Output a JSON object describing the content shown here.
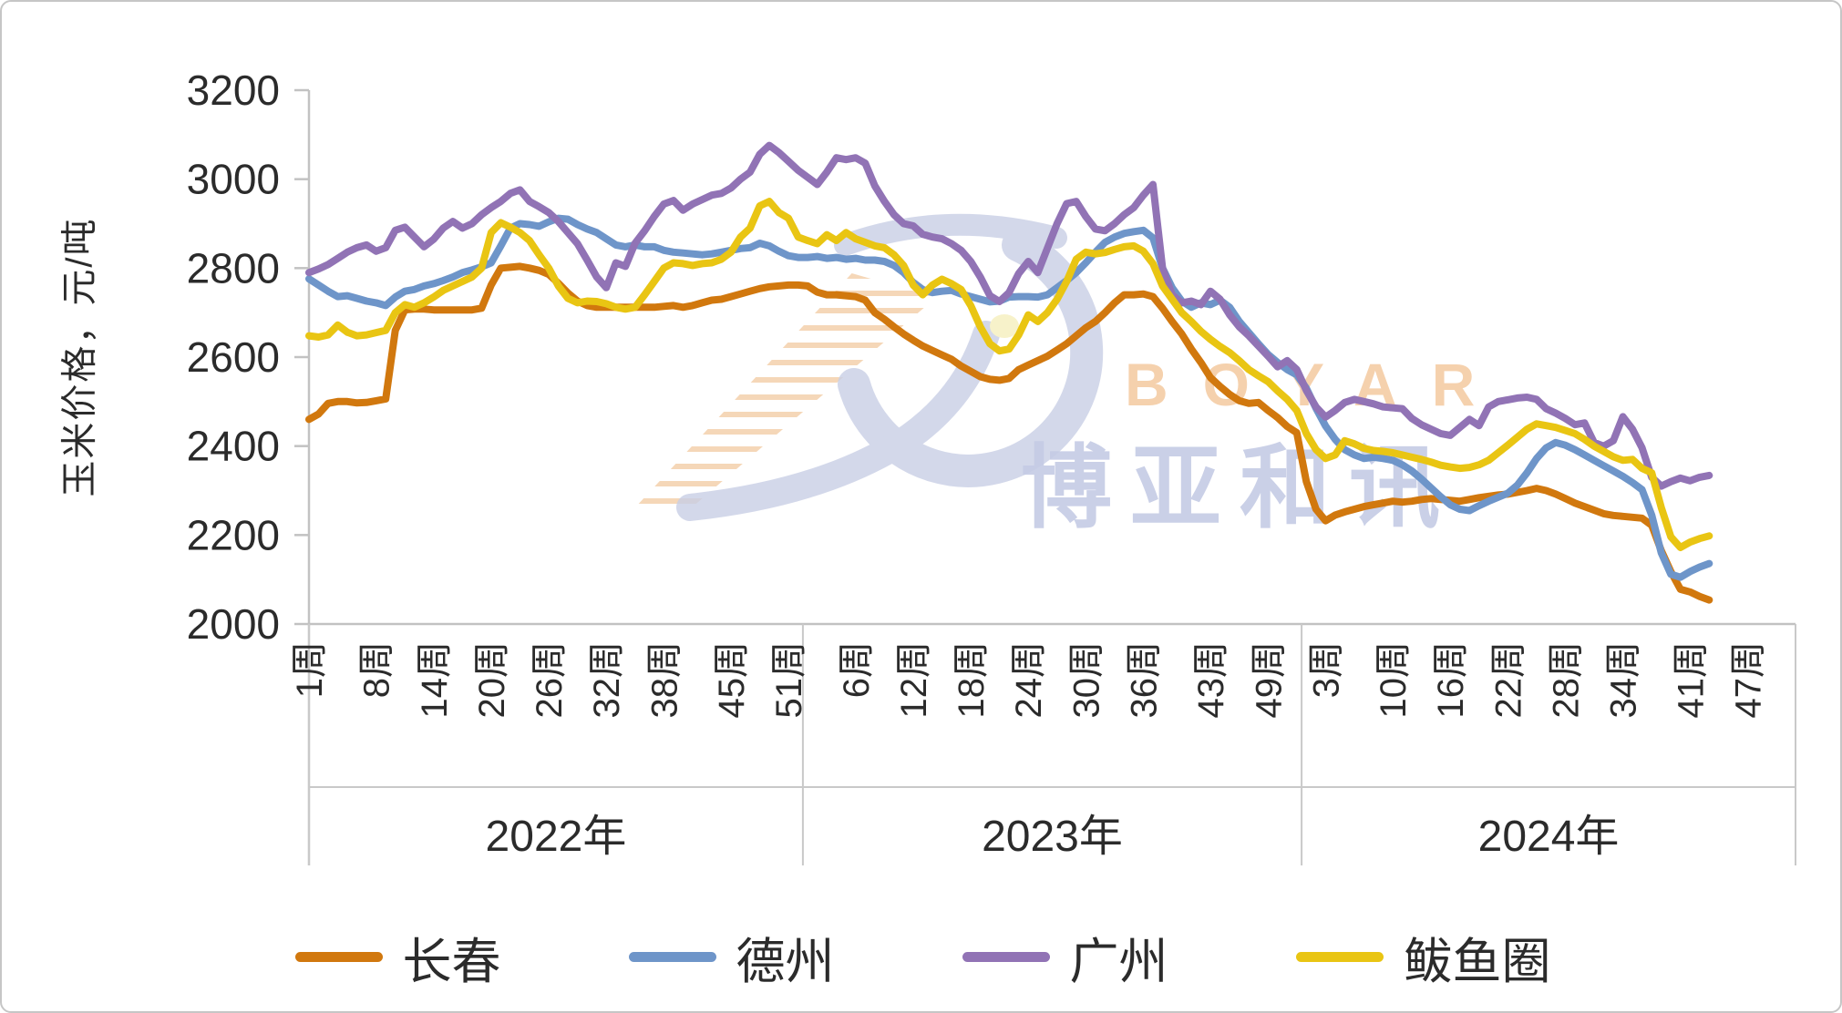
{
  "y_axis_title": "玉米价格，元/吨",
  "watermark": {
    "en": "BOYAR",
    "cn": "博亚和讯"
  },
  "chart_data": {
    "type": "line",
    "title": "",
    "ylabel": "玉米价格，元/吨",
    "xlabel": "",
    "ylim": [
      2000,
      3200
    ],
    "yticks": [
      2000,
      2200,
      2400,
      2600,
      2800,
      3000,
      3200
    ],
    "grid": false,
    "legend_position": "bottom",
    "x_axis_unit": "周 (week)",
    "style": {
      "axis_line_color": "#c2c2c2",
      "separator_color": "#c9c9c9",
      "text_color": "#2b2b2b"
    },
    "x_groups": [
      {
        "label": "2022年",
        "weeks": 52,
        "tick_weeks": [
          1,
          8,
          14,
          20,
          26,
          32,
          38,
          45,
          51
        ],
        "tick_labels": [
          "1周",
          "8周",
          "14周",
          "20周",
          "26周",
          "32周",
          "38周",
          "45周",
          "51周"
        ]
      },
      {
        "label": "2023年",
        "weeks": 52,
        "tick_weeks": [
          6,
          12,
          18,
          24,
          30,
          36,
          43,
          49
        ],
        "tick_labels": [
          "6周",
          "12周",
          "18周",
          "24周",
          "30周",
          "36周",
          "43周",
          "49周"
        ]
      },
      {
        "label": "2024年",
        "weeks": 52,
        "tick_weeks": [
          3,
          10,
          16,
          22,
          28,
          34,
          41,
          47
        ],
        "tick_labels": [
          "3周",
          "10周",
          "16周",
          "22周",
          "28周",
          "34周",
          "41周",
          "47周"
        ]
      }
    ],
    "series": [
      {
        "name": "长春",
        "color": "#d1780e",
        "values": [
          2460,
          2472,
          2496,
          2500,
          2500,
          2497,
          2498,
          2502,
          2506,
          2660,
          2706,
          2708,
          2708,
          2706,
          2706,
          2706,
          2706,
          2706,
          2710,
          2762,
          2800,
          2802,
          2804,
          2800,
          2795,
          2786,
          2766,
          2744,
          2726,
          2716,
          2712,
          2712,
          2712,
          2712,
          2712,
          2712,
          2712,
          2714,
          2716,
          2712,
          2716,
          2722,
          2728,
          2730,
          2736,
          2742,
          2748,
          2754,
          2758,
          2760,
          2762,
          2762,
          2760,
          2746,
          2740,
          2740,
          2738,
          2736,
          2728,
          2700,
          2685,
          2668,
          2652,
          2638,
          2625,
          2615,
          2605,
          2595,
          2580,
          2568,
          2556,
          2550,
          2548,
          2552,
          2572,
          2582,
          2592,
          2602,
          2616,
          2630,
          2648,
          2666,
          2680,
          2700,
          2722,
          2740,
          2740,
          2742,
          2736,
          2710,
          2680,
          2652,
          2618,
          2588,
          2554,
          2534,
          2516,
          2502,
          2496,
          2498,
          2480,
          2464,
          2444,
          2430,
          2320,
          2258,
          2232,
          2245,
          2252,
          2258,
          2264,
          2268,
          2272,
          2276,
          2274,
          2276,
          2280,
          2282,
          2280,
          2278,
          2276,
          2280,
          2284,
          2287,
          2290,
          2292,
          2296,
          2300,
          2305,
          2300,
          2292,
          2282,
          2272,
          2264,
          2256,
          2248,
          2244,
          2242,
          2240,
          2238,
          2222,
          2165,
          2118,
          2078,
          2072,
          2062,
          2054,
          null,
          null,
          null,
          null,
          null,
          null,
          null,
          null,
          null
        ]
      },
      {
        "name": "德州",
        "color": "#6e95c9",
        "values": [
          2776,
          2762,
          2748,
          2736,
          2738,
          2732,
          2726,
          2722,
          2716,
          2735,
          2748,
          2752,
          2760,
          2765,
          2772,
          2780,
          2790,
          2796,
          2803,
          2812,
          2850,
          2890,
          2900,
          2898,
          2894,
          2904,
          2912,
          2910,
          2898,
          2888,
          2880,
          2866,
          2852,
          2848,
          2852,
          2848,
          2848,
          2840,
          2836,
          2834,
          2832,
          2830,
          2832,
          2836,
          2840,
          2844,
          2846,
          2856,
          2850,
          2838,
          2828,
          2824,
          2824,
          2826,
          2822,
          2824,
          2820,
          2822,
          2818,
          2818,
          2815,
          2806,
          2790,
          2768,
          2752,
          2745,
          2748,
          2750,
          2742,
          2736,
          2730,
          2724,
          2726,
          2735,
          2736,
          2736,
          2735,
          2740,
          2756,
          2772,
          2790,
          2812,
          2836,
          2858,
          2870,
          2878,
          2882,
          2885,
          2868,
          2800,
          2756,
          2726,
          2712,
          2722,
          2718,
          2728,
          2712,
          2680,
          2655,
          2630,
          2606,
          2588,
          2572,
          2560,
          2530,
          2485,
          2445,
          2415,
          2392,
          2380,
          2372,
          2375,
          2372,
          2368,
          2358,
          2344,
          2326,
          2306,
          2286,
          2268,
          2258,
          2255,
          2266,
          2276,
          2285,
          2294,
          2312,
          2340,
          2372,
          2396,
          2408,
          2402,
          2392,
          2380,
          2368,
          2356,
          2344,
          2332,
          2318,
          2302,
          2245,
          2160,
          2112,
          2105,
          2118,
          2128,
          2136,
          null,
          null,
          null,
          null,
          null,
          null,
          null,
          null,
          null
        ]
      },
      {
        "name": "广州",
        "color": "#9173b5",
        "values": [
          2790,
          2798,
          2808,
          2822,
          2836,
          2846,
          2852,
          2838,
          2846,
          2885,
          2892,
          2870,
          2848,
          2865,
          2890,
          2905,
          2890,
          2900,
          2920,
          2936,
          2950,
          2968,
          2976,
          2950,
          2938,
          2925,
          2905,
          2880,
          2855,
          2818,
          2780,
          2756,
          2812,
          2804,
          2856,
          2884,
          2916,
          2944,
          2952,
          2930,
          2944,
          2954,
          2964,
          2968,
          2980,
          3000,
          3016,
          3056,
          3076,
          3060,
          3040,
          3020,
          3004,
          2988,
          3016,
          3048,
          3044,
          3048,
          3036,
          2985,
          2950,
          2920,
          2900,
          2895,
          2876,
          2870,
          2866,
          2855,
          2840,
          2815,
          2780,
          2738,
          2725,
          2745,
          2788,
          2815,
          2790,
          2845,
          2900,
          2945,
          2950,
          2916,
          2888,
          2884,
          2900,
          2920,
          2936,
          2964,
          2988,
          2800,
          2740,
          2722,
          2726,
          2718,
          2748,
          2730,
          2695,
          2668,
          2648,
          2625,
          2602,
          2578,
          2592,
          2572,
          2525,
          2488,
          2465,
          2480,
          2498,
          2505,
          2500,
          2495,
          2488,
          2486,
          2484,
          2462,
          2448,
          2438,
          2428,
          2424,
          2442,
          2460,
          2446,
          2488,
          2500,
          2504,
          2508,
          2510,
          2505,
          2484,
          2474,
          2462,
          2448,
          2452,
          2408,
          2400,
          2412,
          2466,
          2438,
          2396,
          2330,
          2310,
          2320,
          2328,
          2322,
          2330,
          2334,
          null,
          null,
          null,
          null,
          null,
          null,
          null,
          null,
          null
        ]
      },
      {
        "name": "鲅鱼圈",
        "color": "#e9c513",
        "values": [
          2648,
          2645,
          2650,
          2672,
          2656,
          2648,
          2650,
          2655,
          2660,
          2700,
          2718,
          2712,
          2722,
          2735,
          2750,
          2760,
          2770,
          2780,
          2800,
          2880,
          2902,
          2892,
          2880,
          2862,
          2830,
          2800,
          2760,
          2732,
          2722,
          2726,
          2725,
          2720,
          2712,
          2708,
          2712,
          2740,
          2770,
          2800,
          2812,
          2810,
          2806,
          2810,
          2812,
          2820,
          2836,
          2870,
          2890,
          2940,
          2950,
          2925,
          2912,
          2870,
          2862,
          2855,
          2875,
          2862,
          2880,
          2866,
          2858,
          2850,
          2846,
          2830,
          2806,
          2762,
          2740,
          2762,
          2775,
          2765,
          2752,
          2716,
          2668,
          2630,
          2614,
          2618,
          2650,
          2695,
          2680,
          2700,
          2730,
          2770,
          2820,
          2836,
          2832,
          2835,
          2842,
          2848,
          2850,
          2838,
          2810,
          2760,
          2730,
          2700,
          2680,
          2658,
          2640,
          2624,
          2610,
          2592,
          2572,
          2558,
          2545,
          2524,
          2505,
          2480,
          2428,
          2392,
          2372,
          2380,
          2412,
          2405,
          2395,
          2390,
          2388,
          2385,
          2380,
          2375,
          2370,
          2364,
          2357,
          2353,
          2350,
          2352,
          2358,
          2368,
          2385,
          2402,
          2420,
          2438,
          2450,
          2446,
          2442,
          2435,
          2428,
          2415,
          2400,
          2388,
          2376,
          2368,
          2370,
          2350,
          2340,
          2262,
          2196,
          2172,
          2184,
          2192,
          2198,
          null,
          null,
          null,
          null,
          null,
          null,
          null,
          null,
          null
        ]
      }
    ]
  }
}
